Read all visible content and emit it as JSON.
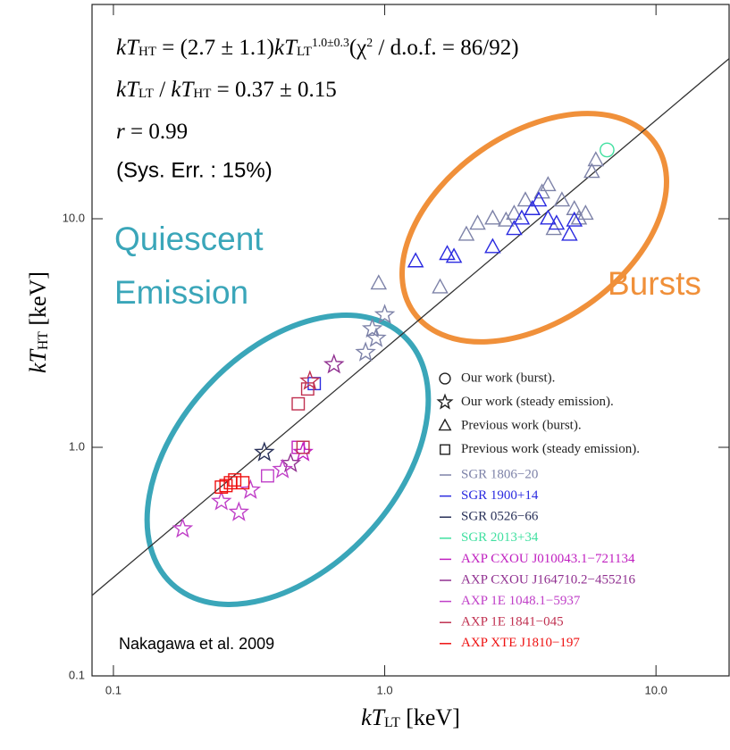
{
  "chart_data": {
    "type": "scatter",
    "log_x": true,
    "log_y": true,
    "xlim": [
      0.0834,
      18.6
    ],
    "ylim": [
      0.1,
      86.6
    ],
    "xticks": [
      0.1,
      {
        "value": 1,
        "label": "1.0"
      },
      {
        "value": 10,
        "label": "10.0"
      }
    ],
    "yticks": [
      0.1,
      {
        "value": 1,
        "label": "1.0"
      },
      {
        "value": 10,
        "label": "10.0"
      }
    ],
    "x_label": [
      {
        "t": "kT",
        "pos": "base"
      },
      {
        "t": "LT",
        "pos": "sub"
      },
      {
        "t": " [keV]",
        "pos": "plain"
      }
    ],
    "y_label": [
      {
        "t": "kT",
        "pos": "base"
      },
      {
        "t": "HT",
        "pos": "sub"
      },
      {
        "t": " [keV]",
        "pos": "plain"
      }
    ],
    "equations": [
      [
        {
          "t": "kT",
          "pos": "base"
        },
        {
          "t": "HT",
          "pos": "sub"
        },
        {
          "t": " = (2.7 ± 1.1)",
          "pos": "plain"
        },
        {
          "t": "kT",
          "pos": "base"
        },
        {
          "t": "LT",
          "pos": "sub"
        },
        {
          "t": "1.0±0.3",
          "pos": "sup"
        },
        {
          "t": "(χ",
          "pos": "plain"
        },
        {
          "t": "2",
          "pos": "sup"
        },
        {
          "t": " / d.o.f. = 86/92)",
          "pos": "plain"
        }
      ],
      [
        {
          "t": "kT",
          "pos": "base"
        },
        {
          "t": "LT",
          "pos": "sub"
        },
        {
          "t": " / ",
          "pos": "plain"
        },
        {
          "t": "kT",
          "pos": "base"
        },
        {
          "t": "HT",
          "pos": "sub"
        },
        {
          "t": " = 0.37 ± 0.15",
          "pos": "plain"
        }
      ],
      [
        {
          "t": "r",
          "pos": "base"
        },
        {
          "t": " = 0.99",
          "pos": "plain"
        }
      ]
    ],
    "sys_err": "(Sys. Err. : 15%)",
    "annotations": [
      "Quiescent",
      "Emission",
      "Bursts",
      "Nakagawa et al. 2009"
    ],
    "fit_line": {
      "x": [
        0.0834,
        18.6
      ],
      "y": [
        0.225,
        50.2
      ],
      "color": "#333333"
    },
    "symbol_legend": [
      {
        "symbol": "circle",
        "label": "Our work (burst)."
      },
      {
        "symbol": "star",
        "label": "Our work (steady emission)."
      },
      {
        "symbol": "triangle",
        "label": "Previous work (burst)."
      },
      {
        "symbol": "square",
        "label": "Previous work (steady emission)."
      }
    ],
    "series": [
      {
        "name": "SGR 1806−20",
        "color": "#7d82a8",
        "x": [
          1.6,
          2.0,
          2.2,
          2.5,
          2.8,
          3.0,
          3.3,
          3.5,
          4.0,
          4.5,
          5.0,
          5.5,
          5.8,
          6.0,
          4.2,
          3.8,
          5.2,
          0.85,
          0.9,
          0.93,
          1.0,
          0.95
        ],
        "values": [
          5.0,
          8.5,
          9.5,
          10,
          9.8,
          10.5,
          12,
          11,
          14,
          12,
          11,
          10.5,
          16,
          18,
          9,
          13,
          10,
          2.6,
          3.3,
          3.0,
          3.8,
          5.2
        ],
        "symbols": [
          "triangle",
          "triangle",
          "triangle",
          "triangle",
          "triangle",
          "triangle",
          "triangle",
          "triangle",
          "triangle",
          "triangle",
          "triangle",
          "triangle",
          "triangle",
          "triangle",
          "triangle",
          "triangle",
          "triangle",
          "star",
          "star",
          "star",
          "star",
          "triangle"
        ]
      },
      {
        "name": "SGR 1900+14",
        "color": "#2a2ae0",
        "x": [
          1.3,
          1.7,
          1.8,
          2.5,
          3.0,
          3.2,
          3.5,
          3.7,
          4.0,
          4.3,
          4.8,
          5.0,
          0.55
        ],
        "values": [
          6.5,
          7,
          6.8,
          7.5,
          9,
          10,
          11,
          12,
          10,
          9.5,
          8.5,
          9.8,
          1.9
        ],
        "symbols": [
          "triangle",
          "triangle",
          "triangle",
          "triangle",
          "triangle",
          "triangle",
          "triangle",
          "triangle",
          "triangle",
          "triangle",
          "triangle",
          "triangle",
          "square"
        ]
      },
      {
        "name": "SGR 0526−66",
        "color": "#283058",
        "x": [
          0.36
        ],
        "values": [
          0.95
        ],
        "symbols": [
          "star"
        ]
      },
      {
        "name": "SGR 2013+34",
        "color": "#40e0a0",
        "x": [
          6.6
        ],
        "values": [
          20
        ],
        "symbols": [
          "circle"
        ]
      },
      {
        "name": "AXP CXOU J010043.1−721134",
        "color": "#c020c0",
        "x": [
          0.5,
          0.48
        ],
        "values": [
          0.95,
          1.0
        ],
        "symbols": [
          "star",
          "square"
        ]
      },
      {
        "name": "AXP CXOU J164710.2−455216",
        "color": "#903090",
        "x": [
          0.65,
          0.45
        ],
        "values": [
          2.3,
          0.85
        ],
        "symbols": [
          "star",
          "star"
        ]
      },
      {
        "name": "AXP 1E 1048.1−5937",
        "color": "#c040c8",
        "x": [
          0.18,
          0.25,
          0.29,
          0.32,
          0.42,
          0.37
        ],
        "values": [
          0.44,
          0.58,
          0.52,
          0.65,
          0.8,
          0.75
        ],
        "symbols": [
          "star",
          "star",
          "star",
          "star",
          "star",
          "square"
        ]
      },
      {
        "name": "AXP 1E 1841−045",
        "color": "#c03050",
        "x": [
          0.48,
          0.5,
          0.52,
          0.53
        ],
        "values": [
          1.55,
          1.0,
          1.8,
          1.95
        ],
        "symbols": [
          "square",
          "square",
          "square",
          "star"
        ]
      },
      {
        "name": "AXP XTE J1810−197",
        "color": "#ee1010",
        "x": [
          0.25,
          0.26,
          0.27,
          0.28,
          0.3
        ],
        "values": [
          0.67,
          0.68,
          0.7,
          0.72,
          0.7
        ],
        "symbols": [
          "square",
          "square",
          "square",
          "square",
          "square"
        ]
      }
    ]
  }
}
